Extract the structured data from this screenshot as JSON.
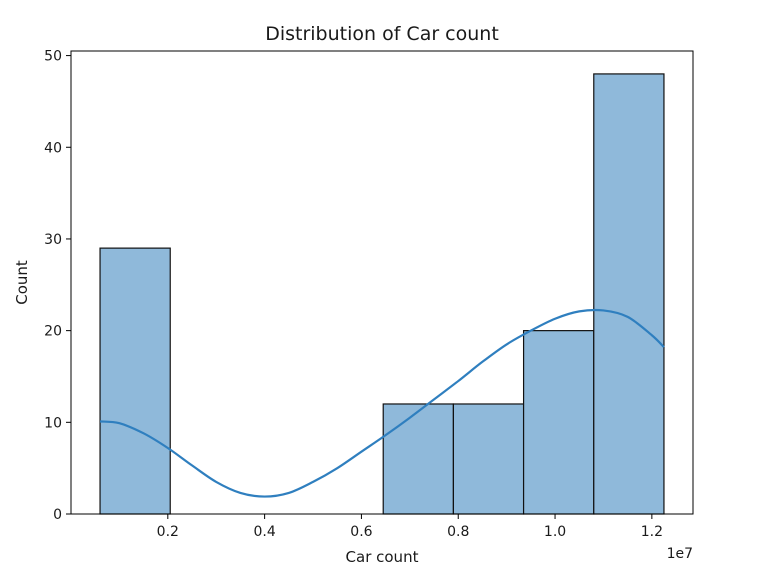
{
  "chart_data": {
    "type": "bar",
    "title": "Distribution of Car count",
    "xlabel": "Car count",
    "ylabel": "Count",
    "x_offset_label": "1e7",
    "bins": [
      {
        "start": 0.06,
        "end": 0.205,
        "count": 29
      },
      {
        "start": 0.205,
        "end": 0.35,
        "count": 0
      },
      {
        "start": 0.35,
        "end": 0.495,
        "count": 0
      },
      {
        "start": 0.495,
        "end": 0.645,
        "count": 0
      },
      {
        "start": 0.645,
        "end": 0.79,
        "count": 12
      },
      {
        "start": 0.79,
        "end": 0.935,
        "count": 12
      },
      {
        "start": 0.935,
        "end": 1.08,
        "count": 20
      },
      {
        "start": 1.08,
        "end": 1.225,
        "count": 48
      }
    ],
    "kde": {
      "x": [
        0.06,
        0.1,
        0.15,
        0.2,
        0.25,
        0.3,
        0.35,
        0.4,
        0.45,
        0.5,
        0.55,
        0.6,
        0.65,
        0.7,
        0.75,
        0.8,
        0.85,
        0.9,
        0.95,
        1.0,
        1.05,
        1.1,
        1.15,
        1.2,
        1.225
      ],
      "y": [
        10.1,
        9.9,
        8.8,
        7.2,
        5.3,
        3.5,
        2.3,
        1.9,
        2.3,
        3.5,
        5.0,
        6.8,
        8.6,
        10.5,
        12.5,
        14.5,
        16.6,
        18.5,
        20.0,
        21.3,
        22.1,
        22.2,
        21.5,
        19.5,
        18.2
      ]
    },
    "xlim": [
      0.0,
      1.285
    ],
    "ylim": [
      0,
      50.5
    ],
    "xticks": [
      0.2,
      0.4,
      0.6,
      0.8,
      1.0,
      1.2
    ],
    "xtick_labels": [
      "0.2",
      "0.4",
      "0.6",
      "0.8",
      "1.0",
      "1.2"
    ],
    "yticks": [
      0,
      10,
      20,
      30,
      40,
      50
    ],
    "ytick_labels": [
      "0",
      "10",
      "20",
      "30",
      "40",
      "50"
    ],
    "grid": false,
    "colors": {
      "bar_fill": "#8fb9da",
      "bar_edge": "#111111",
      "kde_line": "#2f7fbf",
      "axis": "#000000"
    }
  }
}
